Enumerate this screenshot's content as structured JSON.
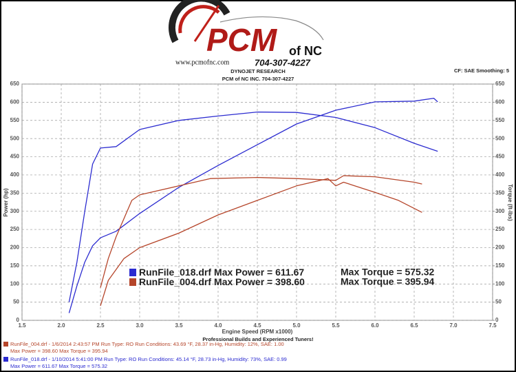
{
  "header": {
    "website": "www.pcmofnc.com",
    "logo_main": "PCM",
    "logo_suffix": "of NC",
    "logo_phone": "704-307-4227",
    "brand": "DYNOJET RESEARCH",
    "shop": "PCM of NC INC. 704-307-4227",
    "settings": "CF: SAE  Smoothing: 5"
  },
  "chart_data": {
    "type": "line",
    "xlabel": "Engine Speed (RPM x1000)",
    "ylabel": "Power (hp)",
    "y2label": "Torque (ft-lbs)",
    "xlim": [
      1.5,
      7.5
    ],
    "xticks": [
      1.5,
      {
        "value": 2,
        "label": "2.0"
      },
      2.5,
      {
        "value": 3,
        "label": "3.0"
      },
      3.5,
      {
        "value": 4,
        "label": "4.0"
      },
      4.5,
      {
        "value": 5,
        "label": "5.0"
      },
      5.5,
      {
        "value": 6,
        "label": "6.0"
      },
      6.5,
      {
        "value": 7,
        "label": "7.0"
      },
      7.5
    ],
    "ylim": [
      0,
      650
    ],
    "yticks": [
      0,
      50,
      100,
      150,
      200,
      250,
      300,
      350,
      400,
      450,
      500,
      550,
      600,
      650
    ],
    "y2lim": [
      0,
      650
    ],
    "y2ticks": [
      0,
      50,
      100,
      150,
      200,
      250,
      300,
      350,
      400,
      450,
      500,
      550,
      600,
      650
    ],
    "grid": true,
    "runs": [
      {
        "name": "RunFile_018.drf",
        "color": "#2b2bd0",
        "max_power": "Max Power = 611.67",
        "max_torque": "Max Torque = 575.32",
        "power": {
          "x": [
            2.1,
            2.2,
            2.3,
            2.4,
            2.5,
            2.7,
            3.0,
            3.5,
            4.0,
            4.5,
            5.0,
            5.5,
            6.0,
            6.5,
            6.75,
            6.8
          ],
          "values": [
            20,
            95,
            160,
            205,
            227,
            245,
            294,
            366,
            426,
            483,
            540,
            578,
            601,
            603,
            611,
            601
          ]
        },
        "torque": {
          "axis": "y2",
          "x": [
            2.1,
            2.2,
            2.3,
            2.4,
            2.5,
            2.7,
            3.0,
            3.5,
            4.0,
            4.5,
            5.0,
            5.5,
            6.0,
            6.5,
            6.8
          ],
          "values": [
            50,
            160,
            300,
            430,
            474,
            478,
            525,
            550,
            562,
            573,
            572,
            558,
            530,
            487,
            465
          ]
        }
      },
      {
        "name": "RunFile_004.drf",
        "color": "#b5452a",
        "max_power": "Max Power = 398.60",
        "max_torque": "Max Torque = 395.94",
        "power": {
          "x": [
            2.5,
            2.6,
            2.8,
            3.0,
            3.5,
            4.0,
            4.5,
            5.0,
            5.4,
            5.5,
            5.6,
            6.0,
            6.3,
            6.6
          ],
          "values": [
            40,
            110,
            170,
            200,
            240,
            290,
            330,
            370,
            390,
            370,
            380,
            352,
            330,
            297
          ]
        },
        "torque": {
          "axis": "y2",
          "x": [
            2.5,
            2.6,
            2.7,
            2.9,
            3.0,
            3.5,
            3.9,
            4.5,
            5.0,
            5.5,
            5.6,
            6.0,
            6.5,
            6.6
          ],
          "values": [
            90,
            170,
            230,
            330,
            345,
            370,
            390,
            393,
            390,
            385,
            398,
            395,
            380,
            375
          ]
        }
      }
    ]
  },
  "footer": {
    "tagline": "Professional Builds and Experienced Tuners!",
    "lines": [
      {
        "color": "#b5452a",
        "run": "RunFile_004.drf - 1/6/2014 2:43:57 PM  Run Type: RO  Run Conditions: 43.69 °F, 28.37 in-Hg,  Humidity:  12%, SAE: 1.00",
        "max": "Max Power = 398.60  Max Torque = 395.94"
      },
      {
        "color": "#2b2bd0",
        "run": "RunFile_018.drf - 1/10/2014 5:41:00 PM  Run Type: RO  Run Conditions: 45.14 °F, 28.73 in-Hg,  Humidity:  73%, SAE: 0.99",
        "max": "Max Power = 611.67  Max Torque = 575.32"
      }
    ]
  }
}
